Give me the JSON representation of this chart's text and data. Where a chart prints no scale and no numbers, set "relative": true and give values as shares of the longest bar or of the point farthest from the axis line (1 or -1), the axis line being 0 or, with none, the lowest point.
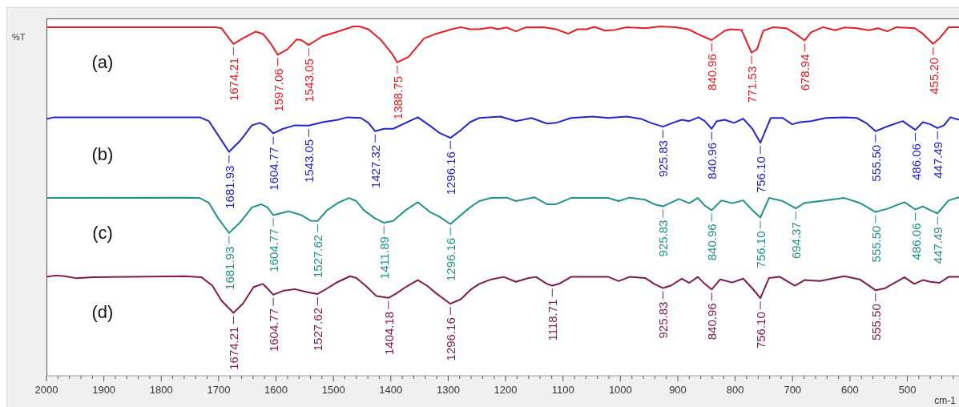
{
  "chart_data": {
    "type": "line",
    "ylabel": "%T",
    "xlabel": "cm-1",
    "relative": true,
    "xlim": [
      2000,
      410
    ],
    "xticks": [
      2000,
      {
        "value": 1980,
        "label": null
      },
      {
        "value": 1960,
        "label": null
      },
      {
        "value": 1940,
        "label": null
      },
      {
        "value": 1920,
        "label": null
      },
      1900,
      {
        "value": 1880,
        "label": null
      },
      {
        "value": 1860,
        "label": null
      },
      {
        "value": 1840,
        "label": null
      },
      {
        "value": 1820,
        "label": null
      },
      1800,
      {
        "value": 1780,
        "label": null
      },
      {
        "value": 1760,
        "label": null
      },
      {
        "value": 1740,
        "label": null
      },
      {
        "value": 1720,
        "label": null
      },
      1700,
      {
        "value": 1680,
        "label": null
      },
      {
        "value": 1660,
        "label": null
      },
      {
        "value": 1640,
        "label": null
      },
      {
        "value": 1620,
        "label": null
      },
      1600,
      {
        "value": 1580,
        "label": null
      },
      {
        "value": 1560,
        "label": null
      },
      {
        "value": 1540,
        "label": null
      },
      {
        "value": 1520,
        "label": null
      },
      1500,
      {
        "value": 1480,
        "label": null
      },
      {
        "value": 1460,
        "label": null
      },
      {
        "value": 1440,
        "label": null
      },
      {
        "value": 1420,
        "label": null
      },
      1400,
      {
        "value": 1380,
        "label": null
      },
      {
        "value": 1360,
        "label": null
      },
      {
        "value": 1340,
        "label": null
      },
      {
        "value": 1320,
        "label": null
      },
      1300,
      {
        "value": 1280,
        "label": null
      },
      {
        "value": 1260,
        "label": null
      },
      {
        "value": 1240,
        "label": null
      },
      {
        "value": 1220,
        "label": null
      },
      1200,
      {
        "value": 1180,
        "label": null
      },
      {
        "value": 1160,
        "label": null
      },
      {
        "value": 1140,
        "label": null
      },
      {
        "value": 1120,
        "label": null
      },
      1100,
      {
        "value": 1080,
        "label": null
      },
      {
        "value": 1060,
        "label": null
      },
      {
        "value": 1040,
        "label": null
      },
      {
        "value": 1020,
        "label": null
      },
      1000,
      {
        "value": 980,
        "label": null
      },
      {
        "value": 960,
        "label": null
      },
      {
        "value": 940,
        "label": null
      },
      {
        "value": 920,
        "label": null
      },
      900,
      {
        "value": 880,
        "label": null
      },
      {
        "value": 860,
        "label": null
      },
      {
        "value": 840,
        "label": null
      },
      {
        "value": 820,
        "label": null
      },
      800,
      {
        "value": 780,
        "label": null
      },
      {
        "value": 760,
        "label": null
      },
      {
        "value": 740,
        "label": null
      },
      {
        "value": 720,
        "label": null
      },
      700,
      {
        "value": 680,
        "label": null
      },
      {
        "value": 660,
        "label": null
      },
      {
        "value": 640,
        "label": null
      },
      {
        "value": 620,
        "label": null
      },
      600,
      {
        "value": 580,
        "label": null
      },
      {
        "value": 560,
        "label": null
      },
      {
        "value": 540,
        "label": null
      },
      {
        "value": 520,
        "label": null
      },
      500,
      {
        "value": 480,
        "label": null
      },
      {
        "value": 460,
        "label": null
      },
      {
        "value": 440,
        "label": null
      },
      {
        "value": 420,
        "label": null
      }
    ],
    "series": [
      {
        "name": "(a)",
        "color": "#e31e24",
        "x": [
          2000,
          1706,
          1695,
          1682,
          1674.21,
          1658,
          1636,
          1623,
          1610,
          1597.06,
          1580,
          1564,
          1556,
          1543.05,
          1519,
          1497,
          1465,
          1455,
          1439,
          1417,
          1398,
          1388.75,
          1369,
          1342,
          1321,
          1294,
          1278,
          1262,
          1246,
          1225,
          1214,
          1198,
          1182,
          1166,
          1134,
          1112,
          1091,
          1075,
          1059,
          1045,
          1027,
          1011,
          989,
          957,
          930,
          904,
          882,
          861,
          840.96,
          818,
          808,
          789,
          771.53,
          762,
          751,
          733,
          711,
          695,
          678.94,
          668,
          647,
          626,
          610,
          588,
          567,
          551,
          535,
          519,
          487,
          473,
          455.2,
          444,
          428,
          410
        ],
        "values": [
          0.998,
          0.998,
          0.995,
          0.966,
          0.95,
          0.966,
          0.985,
          0.979,
          0.953,
          0.919,
          0.935,
          0.963,
          0.961,
          0.947,
          0.972,
          0.983,
          1,
          1,
          0.992,
          0.961,
          0.922,
          0.897,
          0.913,
          0.966,
          0.979,
          0.992,
          0.998,
          0.992,
          0.992,
          0.997,
          0.992,
          0.997,
          0.986,
          0.997,
          0.998,
          0.992,
          0.979,
          0.992,
          0.992,
          0.999,
          0.988,
          0.99,
          0.998,
          0.995,
          1,
          0.998,
          0.992,
          0.975,
          0.961,
          0.988,
          0.992,
          0.99,
          0.925,
          0.935,
          0.988,
          0.998,
          0.995,
          0.979,
          0.96,
          0.983,
          0.998,
          0.989,
          0.997,
          0.995,
          0.989,
          0.995,
          0.986,
          0.998,
          0.995,
          0.979,
          0.95,
          0.966,
          0.998,
          0.998
        ]
      },
      {
        "name": "(b)",
        "color": "#2626c4",
        "x": [
          2000,
          1987,
          1733,
          1717,
          1701,
          1681.93,
          1663,
          1642,
          1628,
          1618,
          1604.77,
          1588,
          1567,
          1543.05,
          1519,
          1492,
          1476,
          1452,
          1439,
          1427.32,
          1412,
          1396,
          1374,
          1353,
          1332,
          1316,
          1296.16,
          1278,
          1262,
          1246,
          1209,
          1182,
          1155,
          1128,
          1112,
          1086,
          1048,
          1021,
          989,
          963,
          947,
          925.83,
          909,
          893,
          880,
          864,
          853,
          840.96,
          832,
          818,
          802,
          786,
          770,
          756.1,
          746,
          738,
          717,
          701,
          687,
          668,
          642,
          610,
          588,
          572,
          555.5,
          535,
          508,
          486.06,
          473,
          460,
          447.49,
          436,
          425,
          410
        ],
        "values": [
          0.735,
          0.74,
          0.74,
          0.729,
          0.689,
          0.641,
          0.672,
          0.717,
          0.724,
          0.716,
          0.694,
          0.707,
          0.717,
          0.716,
          0.726,
          0.733,
          0.74,
          0.738,
          0.724,
          0.7,
          0.707,
          0.707,
          0.724,
          0.74,
          0.716,
          0.696,
          0.681,
          0.703,
          0.726,
          0.738,
          0.742,
          0.729,
          0.738,
          0.722,
          0.724,
          0.738,
          0.742,
          0.738,
          0.742,
          0.735,
          0.724,
          0.713,
          0.724,
          0.733,
          0.729,
          0.74,
          0.729,
          0.707,
          0.729,
          0.733,
          0.724,
          0.736,
          0.707,
          0.667,
          0.707,
          0.738,
          0.738,
          0.72,
          0.726,
          0.729,
          0.738,
          0.74,
          0.738,
          0.724,
          0.7,
          0.714,
          0.729,
          0.704,
          0.726,
          0.72,
          0.709,
          0.717,
          0.74,
          0.733
        ]
      },
      {
        "name": "(c)",
        "color": "#23918a",
        "x": [
          2000,
          1759,
          1733,
          1717,
          1701,
          1681.93,
          1663,
          1642,
          1626,
          1615,
          1604.77,
          1578,
          1556,
          1540,
          1527.62,
          1511,
          1492,
          1473,
          1460,
          1447,
          1428,
          1411.89,
          1396,
          1374,
          1353,
          1332,
          1316,
          1296.16,
          1278,
          1262,
          1246,
          1225,
          1198,
          1182,
          1150,
          1128,
          1112,
          1086,
          1021,
          1003,
          984,
          957,
          941,
          925.83,
          898,
          880,
          865,
          853,
          840.96,
          824,
          805,
          786,
          770,
          756.1,
          741,
          717,
          694.37,
          679,
          652,
          610,
          583,
          555.5,
          535,
          505,
          486.06,
          473,
          460,
          447.49,
          428,
          410
        ],
        "values": [
          0.509,
          0.51,
          0.509,
          0.495,
          0.451,
          0.409,
          0.438,
          0.482,
          0.491,
          0.482,
          0.46,
          0.471,
          0.46,
          0.444,
          0.443,
          0.474,
          0.495,
          0.509,
          0.5,
          0.474,
          0.451,
          0.438,
          0.443,
          0.474,
          0.497,
          0.469,
          0.456,
          0.434,
          0.46,
          0.482,
          0.5,
          0.509,
          0.51,
          0.5,
          0.511,
          0.491,
          0.491,
          0.509,
          0.509,
          0.5,
          0.51,
          0.504,
          0.491,
          0.485,
          0.506,
          0.494,
          0.509,
          0.487,
          0.474,
          0.502,
          0.494,
          0.502,
          0.474,
          0.453,
          0.509,
          0.5,
          0.479,
          0.495,
          0.5,
          0.509,
          0.495,
          0.469,
          0.478,
          0.497,
          0.476,
          0.485,
          0.474,
          0.465,
          0.502,
          0.511
        ]
      },
      {
        "name": "(d)",
        "color": "#7b1c4d",
        "x": [
          2000,
          1984,
          1968,
          1947,
          1920,
          1759,
          1730,
          1711,
          1695,
          1674.21,
          1658,
          1639,
          1623,
          1615,
          1604.77,
          1588,
          1567,
          1545,
          1527.62,
          1511,
          1492,
          1471,
          1460,
          1444,
          1425,
          1404.18,
          1390,
          1374,
          1353,
          1337,
          1321,
          1296.16,
          1278,
          1262,
          1246,
          1225,
          1203,
          1182,
          1160,
          1147,
          1128,
          1118.71,
          1107,
          1086,
          1021,
          1003,
          984,
          957,
          941,
          925.83,
          912,
          893,
          880,
          865,
          853,
          840.96,
          826,
          805,
          786,
          770,
          756.1,
          741,
          722,
          696,
          679,
          652,
          610,
          583,
          555.5,
          540,
          505,
          488,
          473,
          460,
          444,
          428,
          410
        ],
        "values": [
          0.283,
          0.287,
          0.285,
          0.279,
          0.282,
          0.285,
          0.282,
          0.258,
          0.215,
          0.18,
          0.206,
          0.254,
          0.263,
          0.25,
          0.232,
          0.243,
          0.248,
          0.239,
          0.234,
          0.25,
          0.269,
          0.285,
          0.28,
          0.258,
          0.228,
          0.223,
          0.236,
          0.254,
          0.274,
          0.258,
          0.236,
          0.206,
          0.219,
          0.245,
          0.263,
          0.276,
          0.283,
          0.269,
          0.28,
          0.283,
          0.263,
          0.258,
          0.263,
          0.283,
          0.283,
          0.271,
          0.283,
          0.28,
          0.263,
          0.251,
          0.258,
          0.278,
          0.266,
          0.283,
          0.263,
          0.247,
          0.276,
          0.267,
          0.278,
          0.25,
          0.222,
          0.28,
          0.283,
          0.258,
          0.274,
          0.271,
          0.285,
          0.276,
          0.245,
          0.25,
          0.282,
          0.263,
          0.274,
          0.269,
          0.266,
          0.283,
          0.283
        ]
      }
    ],
    "annotations": [
      {
        "text": "1674.21",
        "x": 1674.21,
        "y": 0.95
      },
      {
        "text": "1597.06",
        "x": 1597.06,
        "y": 0.919
      },
      {
        "text": "1543.05",
        "x": 1543.05,
        "y": 0.947
      },
      {
        "text": "1388.75",
        "x": 1388.75,
        "y": 0.897
      },
      {
        "text": "840.96",
        "x": 840.96,
        "y": 0.961
      },
      {
        "text": "771.53",
        "x": 771.53,
        "y": 0.925
      },
      {
        "text": "678.94",
        "x": 678.94,
        "y": 0.96
      },
      {
        "text": "455.20",
        "x": 455.2,
        "y": 0.95
      },
      {
        "text": "1681.93",
        "x": 1681.93,
        "y": 0.641
      },
      {
        "text": "1604.77",
        "x": 1604.77,
        "y": 0.694
      },
      {
        "text": "1543.05",
        "x": 1543.05,
        "y": 0.716
      },
      {
        "text": "1427.32",
        "x": 1427.32,
        "y": 0.7
      },
      {
        "text": "1296.16",
        "x": 1296.16,
        "y": 0.681
      },
      {
        "text": "925.83",
        "x": 925.83,
        "y": 0.713
      },
      {
        "text": "840.96",
        "x": 840.96,
        "y": 0.707
      },
      {
        "text": "756.10",
        "x": 756.1,
        "y": 0.667
      },
      {
        "text": "555.50",
        "x": 555.5,
        "y": 0.7
      },
      {
        "text": "486.06",
        "x": 486.06,
        "y": 0.704
      },
      {
        "text": "447.49",
        "x": 447.49,
        "y": 0.709
      },
      {
        "text": "1681.93",
        "x": 1681.93,
        "y": 0.409
      },
      {
        "text": "1604.77",
        "x": 1604.77,
        "y": 0.46
      },
      {
        "text": "1527.62",
        "x": 1527.62,
        "y": 0.443
      },
      {
        "text": "1411.89",
        "x": 1411.89,
        "y": 0.438
      },
      {
        "text": "1296.16",
        "x": 1296.16,
        "y": 0.434
      },
      {
        "text": "925.83",
        "x": 925.83,
        "y": 0.485
      },
      {
        "text": "840.96",
        "x": 840.96,
        "y": 0.474
      },
      {
        "text": "756.10",
        "x": 756.1,
        "y": 0.453
      },
      {
        "text": "694.37",
        "x": 694.37,
        "y": 0.479
      },
      {
        "text": "555.50",
        "x": 555.5,
        "y": 0.469
      },
      {
        "text": "486.06",
        "x": 486.06,
        "y": 0.476
      },
      {
        "text": "447.49",
        "x": 447.49,
        "y": 0.465
      },
      {
        "text": "1674.21",
        "x": 1674.21,
        "y": 0.18
      },
      {
        "text": "1604.77",
        "x": 1604.77,
        "y": 0.232
      },
      {
        "text": "1527.62",
        "x": 1527.62,
        "y": 0.234
      },
      {
        "text": "1404.18",
        "x": 1404.18,
        "y": 0.223
      },
      {
        "text": "1296.16",
        "x": 1296.16,
        "y": 0.206
      },
      {
        "text": "1118.71",
        "x": 1118.71,
        "y": 0.258
      },
      {
        "text": "925.83",
        "x": 925.83,
        "y": 0.251
      },
      {
        "text": "840.96",
        "x": 840.96,
        "y": 0.247
      },
      {
        "text": "756.10",
        "x": 756.1,
        "y": 0.222
      },
      {
        "text": "555.50",
        "x": 555.5,
        "y": 0.245
      }
    ]
  }
}
